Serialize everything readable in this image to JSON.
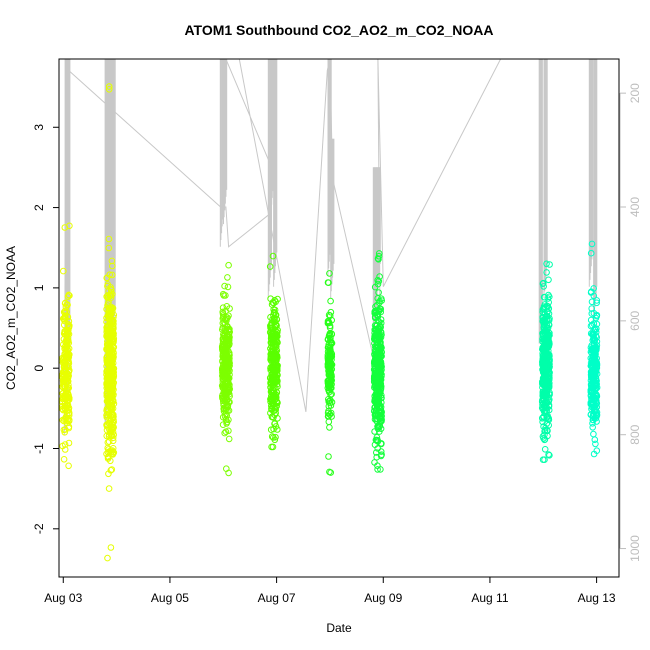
{
  "chart_data": {
    "type": "scatter",
    "title": "ATOM1 Southbound CO2_AO2_m_CO2_NOAA",
    "xlabel": "Date",
    "ylabel": "CO2_AO2_m_CO2_NOAA",
    "x_ticks": [
      "Aug 03",
      "Aug 05",
      "Aug 07",
      "Aug 09",
      "Aug 11",
      "Aug 13"
    ],
    "x_tick_days": [
      3,
      5,
      7,
      9,
      11,
      13
    ],
    "xlim_days": [
      2.92,
      13.42
    ],
    "y_ticks": [
      -2,
      -1,
      0,
      1,
      2,
      3
    ],
    "ylim": [
      -2.6,
      3.85
    ],
    "y2_ticks": [
      200,
      400,
      600,
      800,
      1000
    ],
    "y2lim": [
      1050,
      140
    ],
    "grid": false,
    "legend": "none",
    "series": [
      {
        "day": 3.05,
        "spread": 0.13,
        "color": "#e8ff00",
        "n": 220,
        "sd": 0.42,
        "min": -1.25,
        "max": 1.9
      },
      {
        "day": 3.88,
        "spread": 0.14,
        "color": "#e5ff00",
        "n": 420,
        "sd": 0.5,
        "min": -2.38,
        "max": 3.65
      },
      {
        "day": 6.05,
        "spread": 0.14,
        "color": "#7dff00",
        "n": 300,
        "sd": 0.38,
        "min": -1.32,
        "max": 1.3
      },
      {
        "day": 6.95,
        "spread": 0.14,
        "color": "#5aff00",
        "n": 300,
        "sd": 0.38,
        "min": -0.98,
        "max": 1.45
      },
      {
        "day": 8.0,
        "spread": 0.08,
        "color": "#28ff1a",
        "n": 160,
        "sd": 0.35,
        "min": -1.36,
        "max": 1.18
      },
      {
        "day": 8.9,
        "spread": 0.14,
        "color": "#14ff3c",
        "n": 420,
        "sd": 0.42,
        "min": -1.26,
        "max": 1.53
      },
      {
        "day": 12.05,
        "spread": 0.14,
        "color": "#00ffaa",
        "n": 420,
        "sd": 0.42,
        "min": -1.14,
        "max": 1.3
      },
      {
        "day": 12.95,
        "spread": 0.12,
        "color": "#00ffc8",
        "n": 280,
        "sd": 0.38,
        "min": -1.08,
        "max": 1.6
      }
    ],
    "altitude_trace": [
      [
        3.02,
        800
      ],
      [
        3.05,
        190
      ],
      [
        3.1,
        160
      ],
      [
        5.95,
        400
      ],
      [
        6.05,
        400
      ],
      [
        6.1,
        470
      ],
      [
        6.9,
        410
      ],
      [
        6.95,
        140
      ],
      [
        7.0,
        140
      ],
      [
        6.95,
        340
      ],
      [
        6.05,
        140
      ],
      [
        6.3,
        140
      ],
      [
        7.55,
        760
      ],
      [
        7.95,
        160
      ],
      [
        8.0,
        140
      ],
      [
        8.05,
        350
      ],
      [
        8.95,
        720
      ],
      [
        8.9,
        140
      ],
      [
        9.0,
        540
      ],
      [
        11.2,
        140
      ],
      [
        12.05,
        140
      ],
      [
        12.95,
        140
      ]
    ],
    "profile_spikes": [
      {
        "day": 3.07,
        "top": 140,
        "bottom": 790
      },
      {
        "day": 3.1,
        "top": 140,
        "bottom": 700
      },
      {
        "day": 3.82,
        "top": 140,
        "bottom": 790
      },
      {
        "day": 3.86,
        "top": 140,
        "bottom": 690
      },
      {
        "day": 3.9,
        "top": 140,
        "bottom": 760
      },
      {
        "day": 3.95,
        "top": 140,
        "bottom": 640
      },
      {
        "day": 5.98,
        "top": 140,
        "bottom": 470
      },
      {
        "day": 6.04,
        "top": 140,
        "bottom": 430
      },
      {
        "day": 6.88,
        "top": 140,
        "bottom": 560
      },
      {
        "day": 6.92,
        "top": 140,
        "bottom": 420
      },
      {
        "day": 6.98,
        "top": 140,
        "bottom": 540
      },
      {
        "day": 8.0,
        "top": 140,
        "bottom": 520
      },
      {
        "day": 8.05,
        "top": 280,
        "bottom": 560
      },
      {
        "day": 8.85,
        "top": 330,
        "bottom": 640
      },
      {
        "day": 8.92,
        "top": 330,
        "bottom": 560
      },
      {
        "day": 11.96,
        "top": 140,
        "bottom": 640
      },
      {
        "day": 12.05,
        "top": 140,
        "bottom": 560
      },
      {
        "day": 12.9,
        "top": 140,
        "bottom": 540
      },
      {
        "day": 12.98,
        "top": 140,
        "bottom": 600
      }
    ]
  }
}
